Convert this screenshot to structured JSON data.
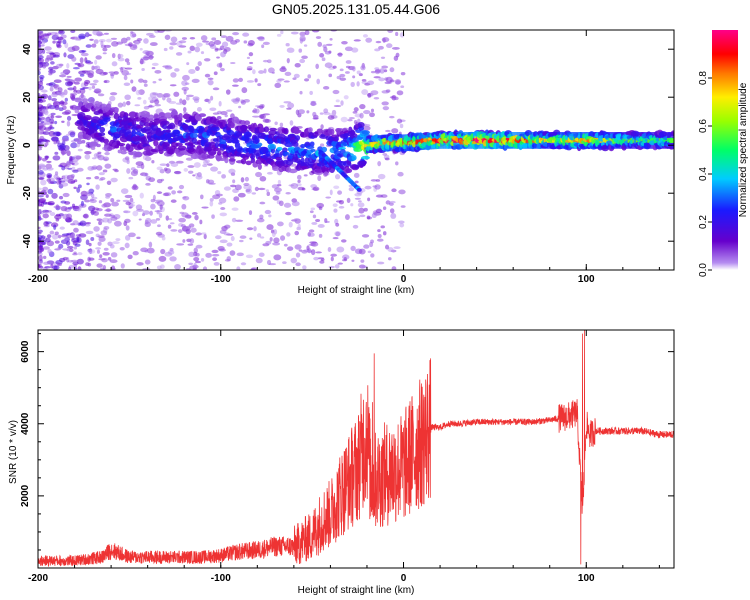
{
  "title": "GN05.2025.131.05.44.G06",
  "chart_data": [
    {
      "type": "heatmap",
      "title": "",
      "xlabel": "Height of straight line (km)",
      "ylabel": "Frequency (Hz)",
      "xlim": [
        -200,
        148
      ],
      "ylim": [
        -52,
        48
      ],
      "x_ticks": [
        "-200",
        "-100",
        "0",
        "100"
      ],
      "x_tick_values": [
        -200,
        -100,
        0,
        100
      ],
      "y_ticks": [
        "-40",
        "-20",
        "0",
        "20",
        "40"
      ],
      "y_tick_values": [
        -40,
        -20,
        0,
        20,
        40
      ],
      "colorbar": {
        "label": "Normalized spectral amplitude",
        "range": [
          0,
          1
        ],
        "ticks": [
          "0.0",
          "0.2",
          "0.4",
          "0.6",
          "0.8"
        ],
        "tick_values": [
          0.0,
          0.2,
          0.4,
          0.6,
          0.8
        ],
        "colormap": "rainbow (purple-blue-cyan-green-yellow-orange-red-pink)"
      },
      "ridge": {
        "x": [
          -175,
          -160,
          -140,
          -120,
          -100,
          -80,
          -60,
          -40,
          -30,
          -22,
          -10,
          0,
          20,
          40,
          60,
          80,
          90,
          100,
          120,
          148
        ],
        "center_freq_hz": [
          10,
          7,
          4,
          5,
          3,
          0,
          -2,
          -3,
          -2,
          0,
          1,
          1,
          2,
          2,
          2,
          2,
          2,
          2,
          2,
          2
        ],
        "peak_amplitude": [
          0.2,
          0.3,
          0.25,
          0.3,
          0.3,
          0.35,
          0.35,
          0.4,
          0.4,
          0.7,
          0.8,
          0.85,
          0.95,
          0.95,
          0.95,
          0.7,
          0.8,
          0.8,
          0.6,
          0.55
        ]
      },
      "grid": false
    },
    {
      "type": "line",
      "title": "",
      "xlabel": "Height of straight line (km)",
      "ylabel": "SNR (10 * v/v)",
      "xlim": [
        -200,
        148
      ],
      "ylim": [
        0,
        6600
      ],
      "x_ticks": [
        "-200",
        "-100",
        "0",
        "100"
      ],
      "x_tick_values": [
        -200,
        -100,
        0,
        100
      ],
      "y_ticks": [
        "2000",
        "4000",
        "6000"
      ],
      "y_tick_values": [
        2000,
        4000,
        6000
      ],
      "color": "#ee3333",
      "series": [
        {
          "x": [
            -200,
            -180,
            -165,
            -160,
            -150,
            -130,
            -110,
            -100,
            -90,
            -80,
            -70,
            -60,
            -50,
            -45,
            -40,
            -35,
            -30,
            -25,
            -20,
            -18,
            -16,
            -10,
            -5,
            0,
            5,
            10,
            15,
            20,
            25,
            30,
            40,
            50,
            60,
            70,
            80,
            90,
            95,
            98,
            100,
            102,
            105,
            110,
            120,
            130,
            140,
            148
          ],
          "y": [
            200,
            200,
            300,
            500,
            300,
            300,
            300,
            350,
            450,
            500,
            600,
            600,
            900,
            1300,
            1500,
            2000,
            2400,
            2800,
            3800,
            2500,
            2400,
            2600,
            2700,
            2800,
            3200,
            3500,
            3900,
            3900,
            4000,
            4000,
            4050,
            4050,
            4050,
            4050,
            4100,
            4200,
            4300,
            1500,
            4000,
            3700,
            3800,
            3800,
            3800,
            3800,
            3700,
            3700
          ]
        }
      ],
      "spikes": {
        "x": [
          -16,
          -17,
          98,
          99,
          97
        ],
        "y": [
          5950,
          4600,
          6500,
          6600,
          100
        ]
      },
      "grid": false
    }
  ]
}
